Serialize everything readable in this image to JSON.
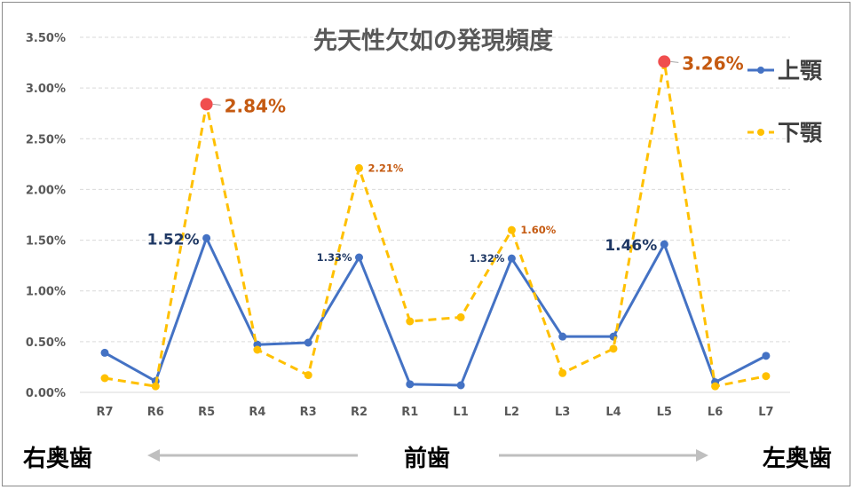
{
  "chart_data": {
    "type": "line",
    "title": "先天性欠如の発現頻度",
    "categories": [
      "R7",
      "R6",
      "R5",
      "R4",
      "R3",
      "R2",
      "R1",
      "L1",
      "L2",
      "L3",
      "L4",
      "L5",
      "L6",
      "L7"
    ],
    "ylim": [
      0,
      0.035
    ],
    "yticks": [
      "0.00%",
      "0.50%",
      "1.00%",
      "1.50%",
      "2.00%",
      "2.50%",
      "3.00%",
      "3.50%"
    ],
    "series": [
      {
        "name": "上顎",
        "color": "#4472c4",
        "style": "solid",
        "values": [
          0.0039,
          0.0011,
          0.0152,
          0.0047,
          0.0049,
          0.0133,
          0.0008,
          0.0007,
          0.0132,
          0.0055,
          0.0055,
          0.0146,
          0.001,
          0.0036
        ]
      },
      {
        "name": "下顎",
        "color": "#ffc000",
        "style": "dashed",
        "values": [
          0.0014,
          0.0006,
          0.0284,
          0.0042,
          0.0017,
          0.0221,
          0.007,
          0.0074,
          0.016,
          0.0019,
          0.0043,
          0.0326,
          0.0006,
          0.0016
        ]
      }
    ],
    "annotations": [
      {
        "series": 0,
        "index": 2,
        "text": "1.52%",
        "size": "large"
      },
      {
        "series": 0,
        "index": 5,
        "text": "1.33%",
        "size": "small"
      },
      {
        "series": 0,
        "index": 8,
        "text": "1.32%",
        "size": "small"
      },
      {
        "series": 0,
        "index": 11,
        "text": "1.46%",
        "size": "large"
      },
      {
        "series": 1,
        "index": 2,
        "text": "2.84%",
        "size": "large",
        "highlight": true
      },
      {
        "series": 1,
        "index": 5,
        "text": "2.21%",
        "size": "small"
      },
      {
        "series": 1,
        "index": 8,
        "text": "1.60%",
        "size": "small"
      },
      {
        "series": 1,
        "index": 11,
        "text": "3.26%",
        "size": "large",
        "highlight": true
      }
    ],
    "legend_position": "right",
    "grid": true
  },
  "bottom_labels": {
    "left": "右奥歯",
    "center": "前歯",
    "right": "左奥歯"
  },
  "colors": {
    "upper_label": "#1f3864",
    "lower_label": "#c55a11",
    "highlight_marker": "#f04e4e",
    "arrow": "#bfbfbf",
    "grid": "#d9d9d9"
  }
}
